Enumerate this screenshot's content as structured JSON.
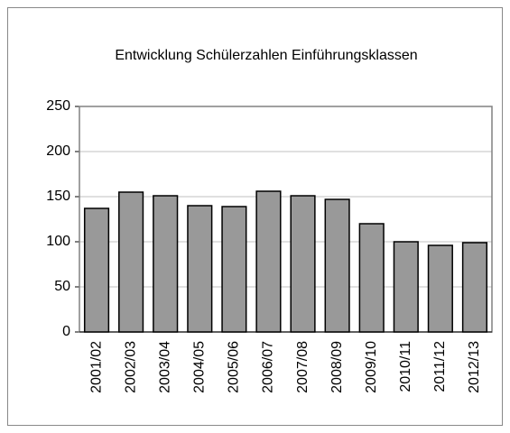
{
  "chart_data": {
    "type": "bar",
    "title": "Entwicklung Schülerzahlen Einführungsklassen",
    "categories": [
      "2001/02",
      "2002/03",
      "2003/04",
      "2004/05",
      "2005/06",
      "2006/07",
      "2007/08",
      "2008/09",
      "2009/10",
      "2010/11",
      "2011/12",
      "2012/13"
    ],
    "values": [
      137,
      155,
      151,
      140,
      139,
      156,
      151,
      147,
      120,
      100,
      96,
      99
    ],
    "color": "#999999",
    "ylim": [
      0,
      250
    ],
    "yticks": [
      0,
      50,
      100,
      150,
      200,
      250
    ],
    "grid": true
  }
}
